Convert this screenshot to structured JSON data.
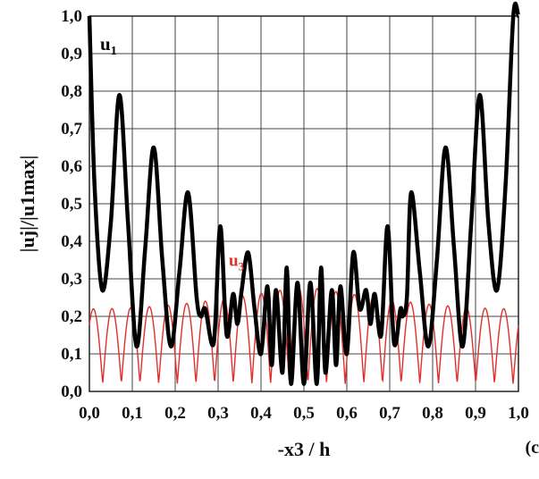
{
  "chart_data": {
    "type": "line",
    "xlabel": "-x3 / h",
    "ylabel": "|uj|/|u1max|",
    "xlim": [
      0.0,
      1.0
    ],
    "ylim": [
      0.0,
      1.0
    ],
    "grid": true,
    "x_ticks": [
      "0,0",
      "0,1",
      "0,2",
      "0,3",
      "0,4",
      "0,5",
      "0,6",
      "0,7",
      "0,8",
      "0,9",
      "1,0"
    ],
    "y_ticks": [
      "0,0",
      "0,1",
      "0,2",
      "0,3",
      "0,4",
      "0,5",
      "0,6",
      "0,7",
      "0,8",
      "0,9",
      "1,0"
    ],
    "series": [
      {
        "name": "u1",
        "color": "#000000",
        "x": [
          0.0,
          0.012,
          0.03,
          0.05,
          0.07,
          0.09,
          0.11,
          0.13,
          0.15,
          0.17,
          0.19,
          0.21,
          0.23,
          0.25,
          0.26,
          0.27,
          0.29,
          0.305,
          0.32,
          0.335,
          0.345,
          0.355,
          0.37,
          0.385,
          0.4,
          0.415,
          0.425,
          0.435,
          0.45,
          0.46,
          0.47,
          0.485,
          0.5,
          0.515,
          0.53,
          0.54,
          0.55,
          0.565,
          0.575,
          0.585,
          0.6,
          0.615,
          0.63,
          0.645,
          0.655,
          0.665,
          0.68,
          0.695,
          0.71,
          0.725,
          0.73,
          0.74,
          0.75,
          0.77,
          0.79,
          0.81,
          0.83,
          0.85,
          0.87,
          0.89,
          0.91,
          0.93,
          0.95,
          0.97,
          0.988,
          1.0
        ],
        "values": [
          1.0,
          0.55,
          0.27,
          0.45,
          0.79,
          0.45,
          0.12,
          0.38,
          0.65,
          0.35,
          0.12,
          0.32,
          0.53,
          0.25,
          0.2,
          0.22,
          0.13,
          0.44,
          0.15,
          0.26,
          0.18,
          0.27,
          0.37,
          0.22,
          0.1,
          0.28,
          0.07,
          0.27,
          0.05,
          0.33,
          0.02,
          0.29,
          0.02,
          0.29,
          0.02,
          0.33,
          0.05,
          0.27,
          0.07,
          0.28,
          0.1,
          0.37,
          0.22,
          0.27,
          0.18,
          0.26,
          0.15,
          0.44,
          0.13,
          0.22,
          0.2,
          0.25,
          0.53,
          0.32,
          0.12,
          0.35,
          0.65,
          0.38,
          0.12,
          0.45,
          0.79,
          0.45,
          0.27,
          0.55,
          1.0,
          1.0
        ]
      },
      {
        "name": "u3",
        "color": "#e0302b",
        "x": [],
        "values": [],
        "note_generated": "oscillating curve between ~0.02 and ~0.28 drawn by script"
      }
    ],
    "annotations": [
      {
        "text_main": "u",
        "text_sub": "1",
        "color": "#000000"
      },
      {
        "text_main": "u",
        "text_sub": "3",
        "color": "#e0302b"
      }
    ]
  },
  "panel_label": "(c"
}
